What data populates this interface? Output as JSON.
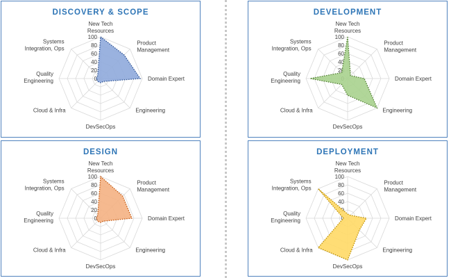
{
  "chart_data": [
    {
      "type": "radar",
      "title": "DISCOVERY & SCOPE",
      "categories": [
        "New Tech Resources",
        "Product Management",
        "Domain Expert",
        "Engineering",
        "DevSecOps",
        "Cloud & Infra",
        "Quality Engineering",
        "Systems Integration, Ops"
      ],
      "values": [
        100,
        80,
        95,
        10,
        10,
        10,
        10,
        10
      ],
      "ylim": [
        0,
        100
      ],
      "ticks": [
        "0",
        "20",
        "40",
        "60",
        "80",
        "100"
      ],
      "fill_color": "#8faadc",
      "line_color": "#2f5597"
    },
    {
      "type": "radar",
      "title": "DEVELOPMENT",
      "categories": [
        "New Tech Resources",
        "Product Management",
        "Domain Expert",
        "Engineering",
        "DevSecOps",
        "Cloud & Infra",
        "Quality Engineering",
        "Systems Integration, Ops"
      ],
      "values": [
        100,
        10,
        40,
        100,
        40,
        20,
        90,
        20
      ],
      "ylim": [
        0,
        100
      ],
      "ticks": [
        "0",
        "20",
        "40",
        "60",
        "80",
        "100"
      ],
      "fill_color": "#a9d18e",
      "line_color": "#548235"
    },
    {
      "type": "radar",
      "title": "DESIGN",
      "categories": [
        "New Tech Resources",
        "Product Management",
        "Domain Expert",
        "Engineering",
        "DevSecOps",
        "Cloud & Infra",
        "Quality Engineering",
        "Systems Integration, Ops"
      ],
      "values": [
        100,
        75,
        75,
        10,
        10,
        10,
        10,
        10
      ],
      "ylim": [
        0,
        100
      ],
      "ticks": [
        "0",
        "20",
        "40",
        "60",
        "80",
        "100"
      ],
      "fill_color": "#f4b183",
      "line_color": "#c55a11"
    },
    {
      "type": "radar",
      "title": "DEPLOYMENT",
      "categories": [
        "New Tech Resources",
        "Product Management",
        "Domain Expert",
        "Engineering",
        "DevSecOps",
        "Cloud & Infra",
        "Quality Engineering",
        "Systems Integration, Ops"
      ],
      "values": [
        10,
        10,
        45,
        40,
        100,
        100,
        10,
        100
      ],
      "ylim": [
        0,
        100
      ],
      "ticks": [
        "0",
        "20",
        "40",
        "60",
        "80",
        "100"
      ],
      "fill_color": "#ffd966",
      "line_color": "#bf9000"
    }
  ]
}
